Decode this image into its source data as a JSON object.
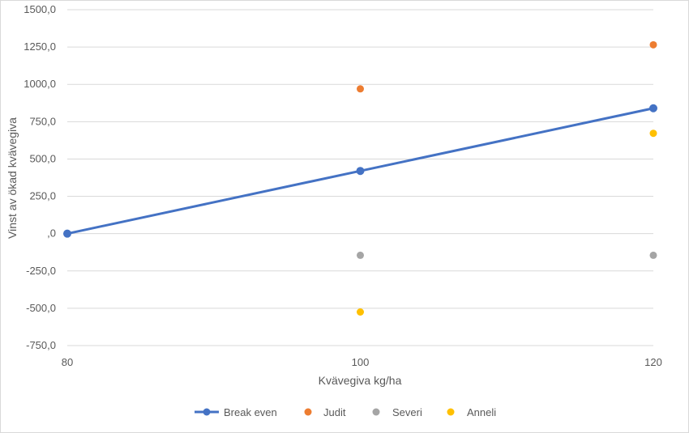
{
  "chart_data": {
    "type": "line",
    "xlabel": "Kvävegiva kg/ha",
    "ylabel": "Vinst av ökad kvävegiva",
    "xlim": [
      80,
      120
    ],
    "ylim": [
      -750,
      1500
    ],
    "x_ticks": [
      "80",
      "100",
      "120"
    ],
    "y_ticks": [
      "-750,0",
      "-500,0",
      "-250,0",
      ",0",
      "250,0",
      "500,0",
      "750,0",
      "1000,0",
      "1250,0",
      "1500,0"
    ],
    "y_tick_values": [
      -750,
      -500,
      -250,
      0,
      250,
      500,
      750,
      1000,
      1250,
      1500
    ],
    "grid": "horizontal",
    "legend_position": "bottom",
    "series": [
      {
        "name": "Break even",
        "mode": "line+markers",
        "color": "#4472c4",
        "points": [
          [
            80,
            0
          ],
          [
            100,
            420
          ],
          [
            120,
            840
          ]
        ]
      },
      {
        "name": "Judit",
        "mode": "markers",
        "color": "#ed7d31",
        "points": [
          [
            100,
            970
          ],
          [
            120,
            1265
          ]
        ]
      },
      {
        "name": "Severi",
        "mode": "markers",
        "color": "#a5a5a5",
        "points": [
          [
            100,
            -145
          ],
          [
            120,
            -145
          ]
        ]
      },
      {
        "name": "Anneli",
        "mode": "markers",
        "color": "#ffc000",
        "points": [
          [
            100,
            -525
          ],
          [
            120,
            672
          ]
        ]
      }
    ]
  }
}
